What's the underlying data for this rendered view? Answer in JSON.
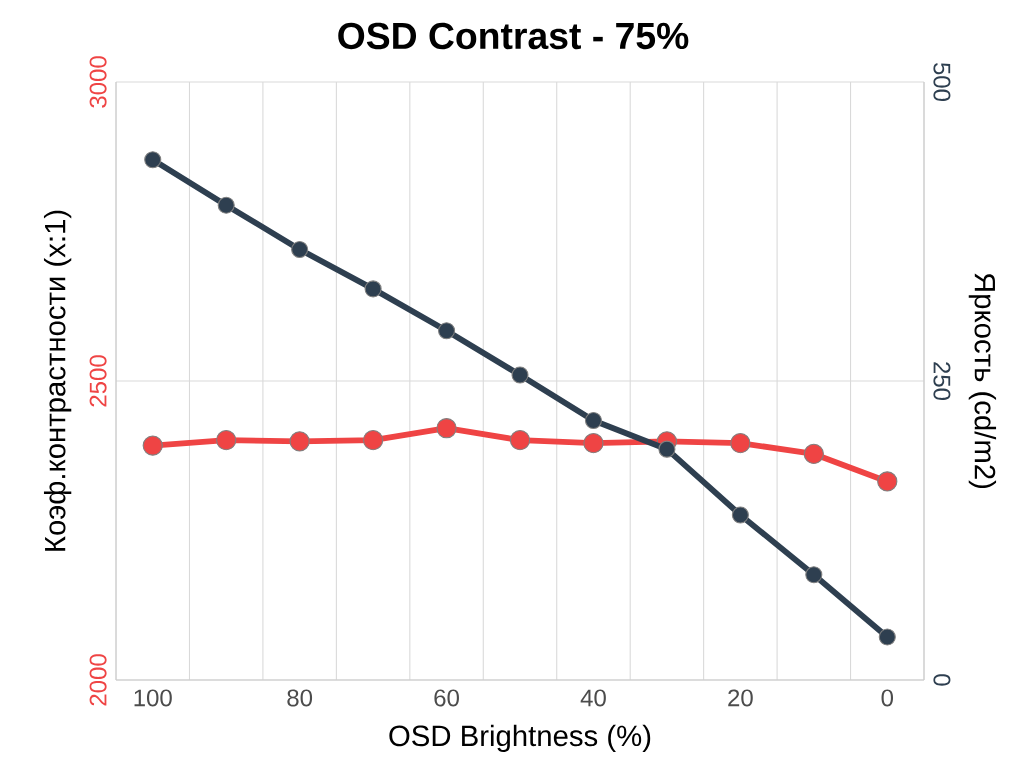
{
  "chart_data": {
    "type": "line",
    "title": "OSD Contrast - 75%",
    "xlabel": "OSD Brightness (%)",
    "ylabel": "Коэф.контрастности (x:1)",
    "y2label": "Яркость (cd/m2)",
    "categories": [
      "100",
      null,
      "80",
      null,
      "60",
      null,
      "40",
      null,
      "20",
      null,
      "0"
    ],
    "ylim": [
      2000,
      3000
    ],
    "yticks": [
      2000,
      2500,
      3000
    ],
    "y2lim": [
      0,
      500
    ],
    "y2ticks": [
      0,
      250,
      500
    ],
    "grid": true,
    "marker": "circle",
    "line_style": "solid",
    "series": [
      {
        "color": "#ef4444",
        "values": [
          2392,
          2401,
          2399,
          2401,
          2421,
          2401,
          2396,
          2399,
          2396,
          2378,
          2332
        ]
      },
      {
        "color": "#2e3f50",
        "axis": "y2",
        "values": [
          435,
          397,
          360,
          327,
          292,
          255,
          217,
          193,
          138,
          88,
          36
        ]
      }
    ]
  }
}
